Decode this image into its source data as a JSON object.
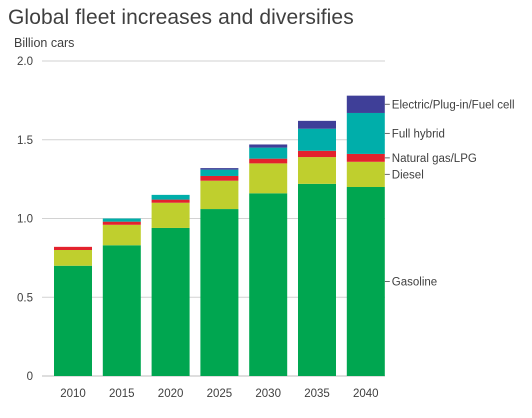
{
  "title": "Global fleet increases and diversifies",
  "subtitle": "Billion cars",
  "chart_data": {
    "type": "bar",
    "stacked": true,
    "categories": [
      "2010",
      "2015",
      "2020",
      "2025",
      "2030",
      "2035",
      "2040"
    ],
    "ylim": [
      0,
      2.0
    ],
    "yticks": [
      0,
      0.5,
      1.0,
      1.5,
      2.0
    ],
    "ytick_labels": [
      "0",
      "0.5",
      "1.0",
      "1.5",
      "2.0"
    ],
    "grid": true,
    "legend_placement": "right, labels at series ends",
    "series": [
      {
        "name": "Gasoline",
        "color": "#00a650",
        "values": [
          0.7,
          0.83,
          0.94,
          1.06,
          1.16,
          1.22,
          1.2
        ]
      },
      {
        "name": "Diesel",
        "color": "#bfcf2e",
        "values": [
          0.1,
          0.13,
          0.16,
          0.18,
          0.19,
          0.17,
          0.16
        ]
      },
      {
        "name": "Natural gas/LPG",
        "color": "#e3222d",
        "values": [
          0.02,
          0.02,
          0.02,
          0.03,
          0.03,
          0.04,
          0.05
        ]
      },
      {
        "name": "Full hybrid",
        "color": "#00aeaa",
        "values": [
          0.0,
          0.02,
          0.03,
          0.04,
          0.07,
          0.14,
          0.26
        ]
      },
      {
        "name": "Electric/Plug-in/Fuel cell",
        "color": "#3f3f98",
        "values": [
          0.0,
          0.0,
          0.0,
          0.01,
          0.02,
          0.05,
          0.11
        ]
      }
    ]
  }
}
